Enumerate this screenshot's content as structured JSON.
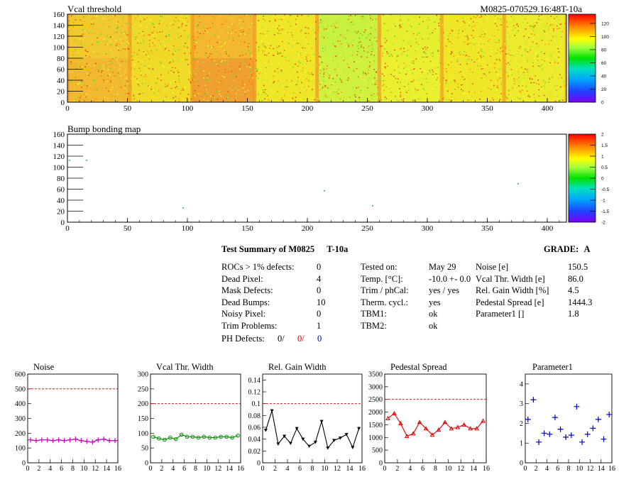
{
  "header": {
    "map1_title": "Vcal threshold",
    "module_id": "M0825-070529.16:48T-10a",
    "map2_title": "Bump bonding map"
  },
  "maps": {
    "x_ticks": [
      0,
      50,
      100,
      150,
      200,
      250,
      300,
      350,
      400
    ],
    "y_ticks": [
      0,
      20,
      40,
      60,
      80,
      100,
      120,
      140,
      160
    ],
    "xlim": [
      0,
      416
    ],
    "ylim": [
      0,
      160
    ],
    "vcal_palette_ticks": [
      "0",
      "20",
      "40",
      "60",
      "80",
      "100",
      "120"
    ],
    "bump_palette_ticks": [
      "-2",
      "-1.5",
      "-1",
      "-0.5",
      "0",
      "0.5",
      "1",
      "1.5",
      "2"
    ]
  },
  "summary": {
    "title": "Test Summary of M0825",
    "temp_tag": "T-10a",
    "grade_label": "GRADE:",
    "grade": "A",
    "left": [
      {
        "label": "ROCs > 1% defects:",
        "value": "0"
      },
      {
        "label": "Dead Pixel:",
        "value": "4"
      },
      {
        "label": "Mask Defects:",
        "value": "0"
      },
      {
        "label": "Dead Bumps:",
        "value": "10"
      },
      {
        "label": "Noisy Pixel:",
        "value": "0"
      },
      {
        "label": "Trim Problems:",
        "value": "1"
      }
    ],
    "ph_defects_label": "PH Defects:",
    "ph_defects": [
      "0/",
      "0/",
      "0"
    ],
    "middle": [
      {
        "label": "Tested on:",
        "value": "May 29"
      },
      {
        "label": "Temp. [°C]:",
        "value": "-10.0 +- 0.0"
      },
      {
        "label": "Trim / phCal:",
        "value": "yes / yes"
      },
      {
        "label": "Therm. cycl.:",
        "value": "yes"
      },
      {
        "label": "TBM1:",
        "value": "ok"
      },
      {
        "label": "TBM2:",
        "value": "ok"
      }
    ],
    "right": [
      {
        "label": "Noise [e]",
        "value": "150.5"
      },
      {
        "label": "Vcal Thr. Width [e]",
        "value": "86.0"
      },
      {
        "label": "Rel. Gain Width [%]",
        "value": "4.5"
      },
      {
        "label": "Pedestal Spread [e]",
        "value": "1444.3"
      },
      {
        "label": "Parameter1 []",
        "value": "1.8"
      }
    ]
  },
  "chart_data": [
    {
      "type": "line",
      "title": "Noise",
      "color": "#c000c0",
      "marker": "plus",
      "x": [
        0,
        1,
        2,
        3,
        4,
        5,
        6,
        7,
        8,
        9,
        10,
        11,
        12,
        13,
        14,
        15
      ],
      "values": [
        155,
        150,
        155,
        155,
        150,
        155,
        150,
        155,
        160,
        150,
        145,
        140,
        155,
        160,
        150,
        150
      ],
      "ylim": [
        0,
        600
      ],
      "yticks": [
        0,
        100,
        200,
        300,
        400,
        500,
        600
      ],
      "threshold": 500,
      "xticks": [
        0,
        2,
        4,
        6,
        8,
        10,
        12,
        14,
        16
      ],
      "xlim": [
        0,
        16
      ]
    },
    {
      "type": "line",
      "title": "Vcal Thr. Width",
      "color": "#009000",
      "marker": "circle",
      "x": [
        0,
        1,
        2,
        3,
        4,
        5,
        6,
        7,
        8,
        9,
        10,
        11,
        12,
        13,
        14,
        15
      ],
      "values": [
        88,
        82,
        78,
        85,
        80,
        95,
        88,
        88,
        85,
        88,
        85,
        85,
        88,
        88,
        85,
        92
      ],
      "ylim": [
        0,
        300
      ],
      "yticks": [
        0,
        50,
        100,
        150,
        200,
        250,
        300
      ],
      "threshold": 200,
      "xticks": [
        0,
        2,
        4,
        6,
        8,
        10,
        12,
        14,
        16
      ],
      "xlim": [
        0,
        16
      ]
    },
    {
      "type": "line",
      "title": "Rel. Gain Width",
      "color": "#000000",
      "marker": "triangle-down",
      "x": [
        0,
        1,
        2,
        3,
        4,
        5,
        6,
        7,
        8,
        9,
        10,
        11,
        12,
        13,
        14,
        15
      ],
      "values": [
        0.055,
        0.088,
        0.032,
        0.045,
        0.033,
        0.058,
        0.04,
        0.028,
        0.035,
        0.07,
        0.025,
        0.038,
        0.042,
        0.048,
        0.026,
        0.058
      ],
      "ylim": [
        0,
        0.15
      ],
      "yticks": [
        0,
        0.02,
        0.04,
        0.06,
        0.08,
        0.1,
        0.12,
        0.14
      ],
      "threshold": 0.1,
      "xticks": [
        0,
        2,
        4,
        6,
        8,
        10,
        12,
        14,
        16
      ],
      "xlim": [
        0,
        16
      ]
    },
    {
      "type": "line",
      "title": "Pedestal Spread",
      "color": "#e00000",
      "marker": "triangle-up",
      "x": [
        0,
        1,
        2,
        3,
        4,
        5,
        6,
        7,
        8,
        9,
        10,
        11,
        12,
        13,
        14,
        15
      ],
      "values": [
        1750,
        1950,
        1550,
        1050,
        1150,
        1600,
        1350,
        1100,
        1300,
        1600,
        1350,
        1400,
        1500,
        1350,
        1350,
        1650
      ],
      "ylim": [
        0,
        3500
      ],
      "yticks": [
        0,
        500,
        1000,
        1500,
        2000,
        2500,
        3000,
        3500
      ],
      "threshold": 2500,
      "xticks": [
        0,
        2,
        4,
        6,
        8,
        10,
        12,
        14,
        16
      ],
      "xlim": [
        0,
        16
      ]
    },
    {
      "type": "scatter",
      "title": "Parameter1",
      "color": "#0000c0",
      "marker": "plus",
      "x": [
        0,
        1,
        2,
        3,
        4,
        5,
        6,
        7,
        8,
        9,
        10,
        11,
        12,
        13,
        14,
        15
      ],
      "values": [
        2.2,
        3.2,
        1.05,
        1.5,
        1.45,
        2.3,
        1.7,
        1.3,
        1.4,
        2.85,
        1.05,
        1.45,
        1.75,
        2.2,
        1.2,
        2.45
      ],
      "ylim": [
        0,
        4.5
      ],
      "yticks": [
        0,
        1,
        2,
        3,
        4
      ],
      "xticks": [
        0,
        2,
        4,
        6,
        8,
        10,
        12,
        14,
        16
      ],
      "xlim": [
        0,
        16
      ]
    }
  ]
}
